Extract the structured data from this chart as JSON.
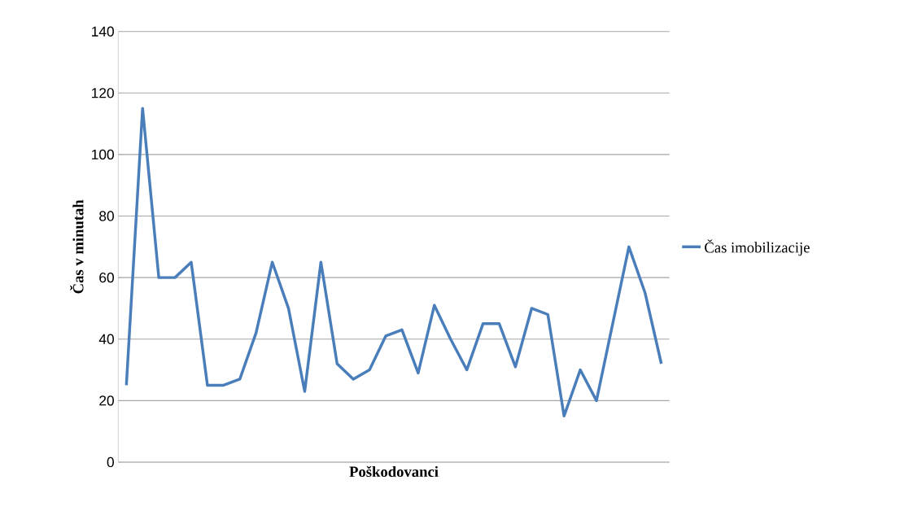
{
  "chart_data": {
    "type": "line",
    "xlabel": "Poškodovanci",
    "ylabel": "Čas  v  minutah",
    "categories": [
      null,
      null,
      null,
      null,
      null,
      null,
      null,
      null,
      null,
      null,
      null,
      null,
      null,
      null,
      null,
      null,
      null,
      null,
      null,
      null,
      null,
      null,
      null,
      null,
      null,
      null,
      null,
      null,
      null,
      null,
      null,
      null,
      null,
      null
    ],
    "series": [
      {
        "name": "Čas imobilizacije",
        "color": "#4a7ebb",
        "values": [
          25,
          115,
          60,
          60,
          65,
          25,
          25,
          27,
          42,
          65,
          50,
          23,
          65,
          32,
          27,
          30,
          41,
          43,
          29,
          51,
          40,
          30,
          45,
          45,
          31,
          50,
          48,
          15,
          30,
          20,
          45,
          70,
          55,
          32
        ]
      }
    ],
    "ylim": [
      0,
      140
    ],
    "yticks": [
      0,
      20,
      40,
      60,
      80,
      100,
      120,
      140
    ],
    "grid": "y",
    "legend": "right",
    "marker": "none",
    "line_style": "solid"
  }
}
